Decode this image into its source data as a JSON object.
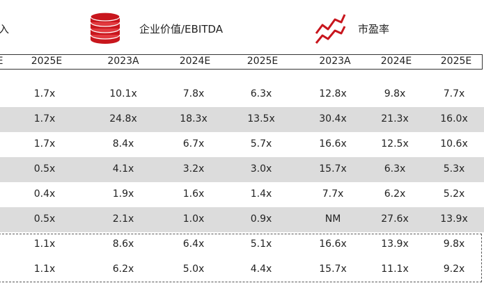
{
  "header": {
    "partial_label": "入",
    "ev_ebitda_label": "企业价值/EBITDA",
    "pe_label": "市盈率"
  },
  "columns": {
    "partial": "E",
    "c1": "2025E",
    "c2": "2023A",
    "c3": "2024E",
    "c4": "2025E",
    "c5": "2023A",
    "c6": "2024E",
    "c7": "2025E"
  },
  "rows": [
    [
      "1.7x",
      "10.1x",
      "7.8x",
      "6.3x",
      "12.8x",
      "9.8x",
      "7.7x"
    ],
    [
      "1.7x",
      "24.8x",
      "18.3x",
      "13.5x",
      "30.4x",
      "21.3x",
      "16.0x"
    ],
    [
      "1.7x",
      "8.4x",
      "6.7x",
      "5.7x",
      "16.6x",
      "12.5x",
      "10.6x"
    ],
    [
      "0.5x",
      "4.1x",
      "3.2x",
      "3.0x",
      "15.7x",
      "6.3x",
      "5.3x"
    ],
    [
      "0.4x",
      "1.9x",
      "1.6x",
      "1.4x",
      "7.7x",
      "6.2x",
      "5.2x"
    ],
    [
      "0.5x",
      "2.1x",
      "1.0x",
      "0.9x",
      "NM",
      "27.6x",
      "13.9x"
    ],
    [
      "1.1x",
      "8.6x",
      "6.4x",
      "5.1x",
      "16.6x",
      "13.9x",
      "9.8x"
    ],
    [
      "1.1x",
      "6.2x",
      "5.0x",
      "4.4x",
      "15.7x",
      "11.1x",
      "9.2x"
    ]
  ],
  "colors": {
    "accent": "#c8161d",
    "shade": "#dcdcdc"
  }
}
